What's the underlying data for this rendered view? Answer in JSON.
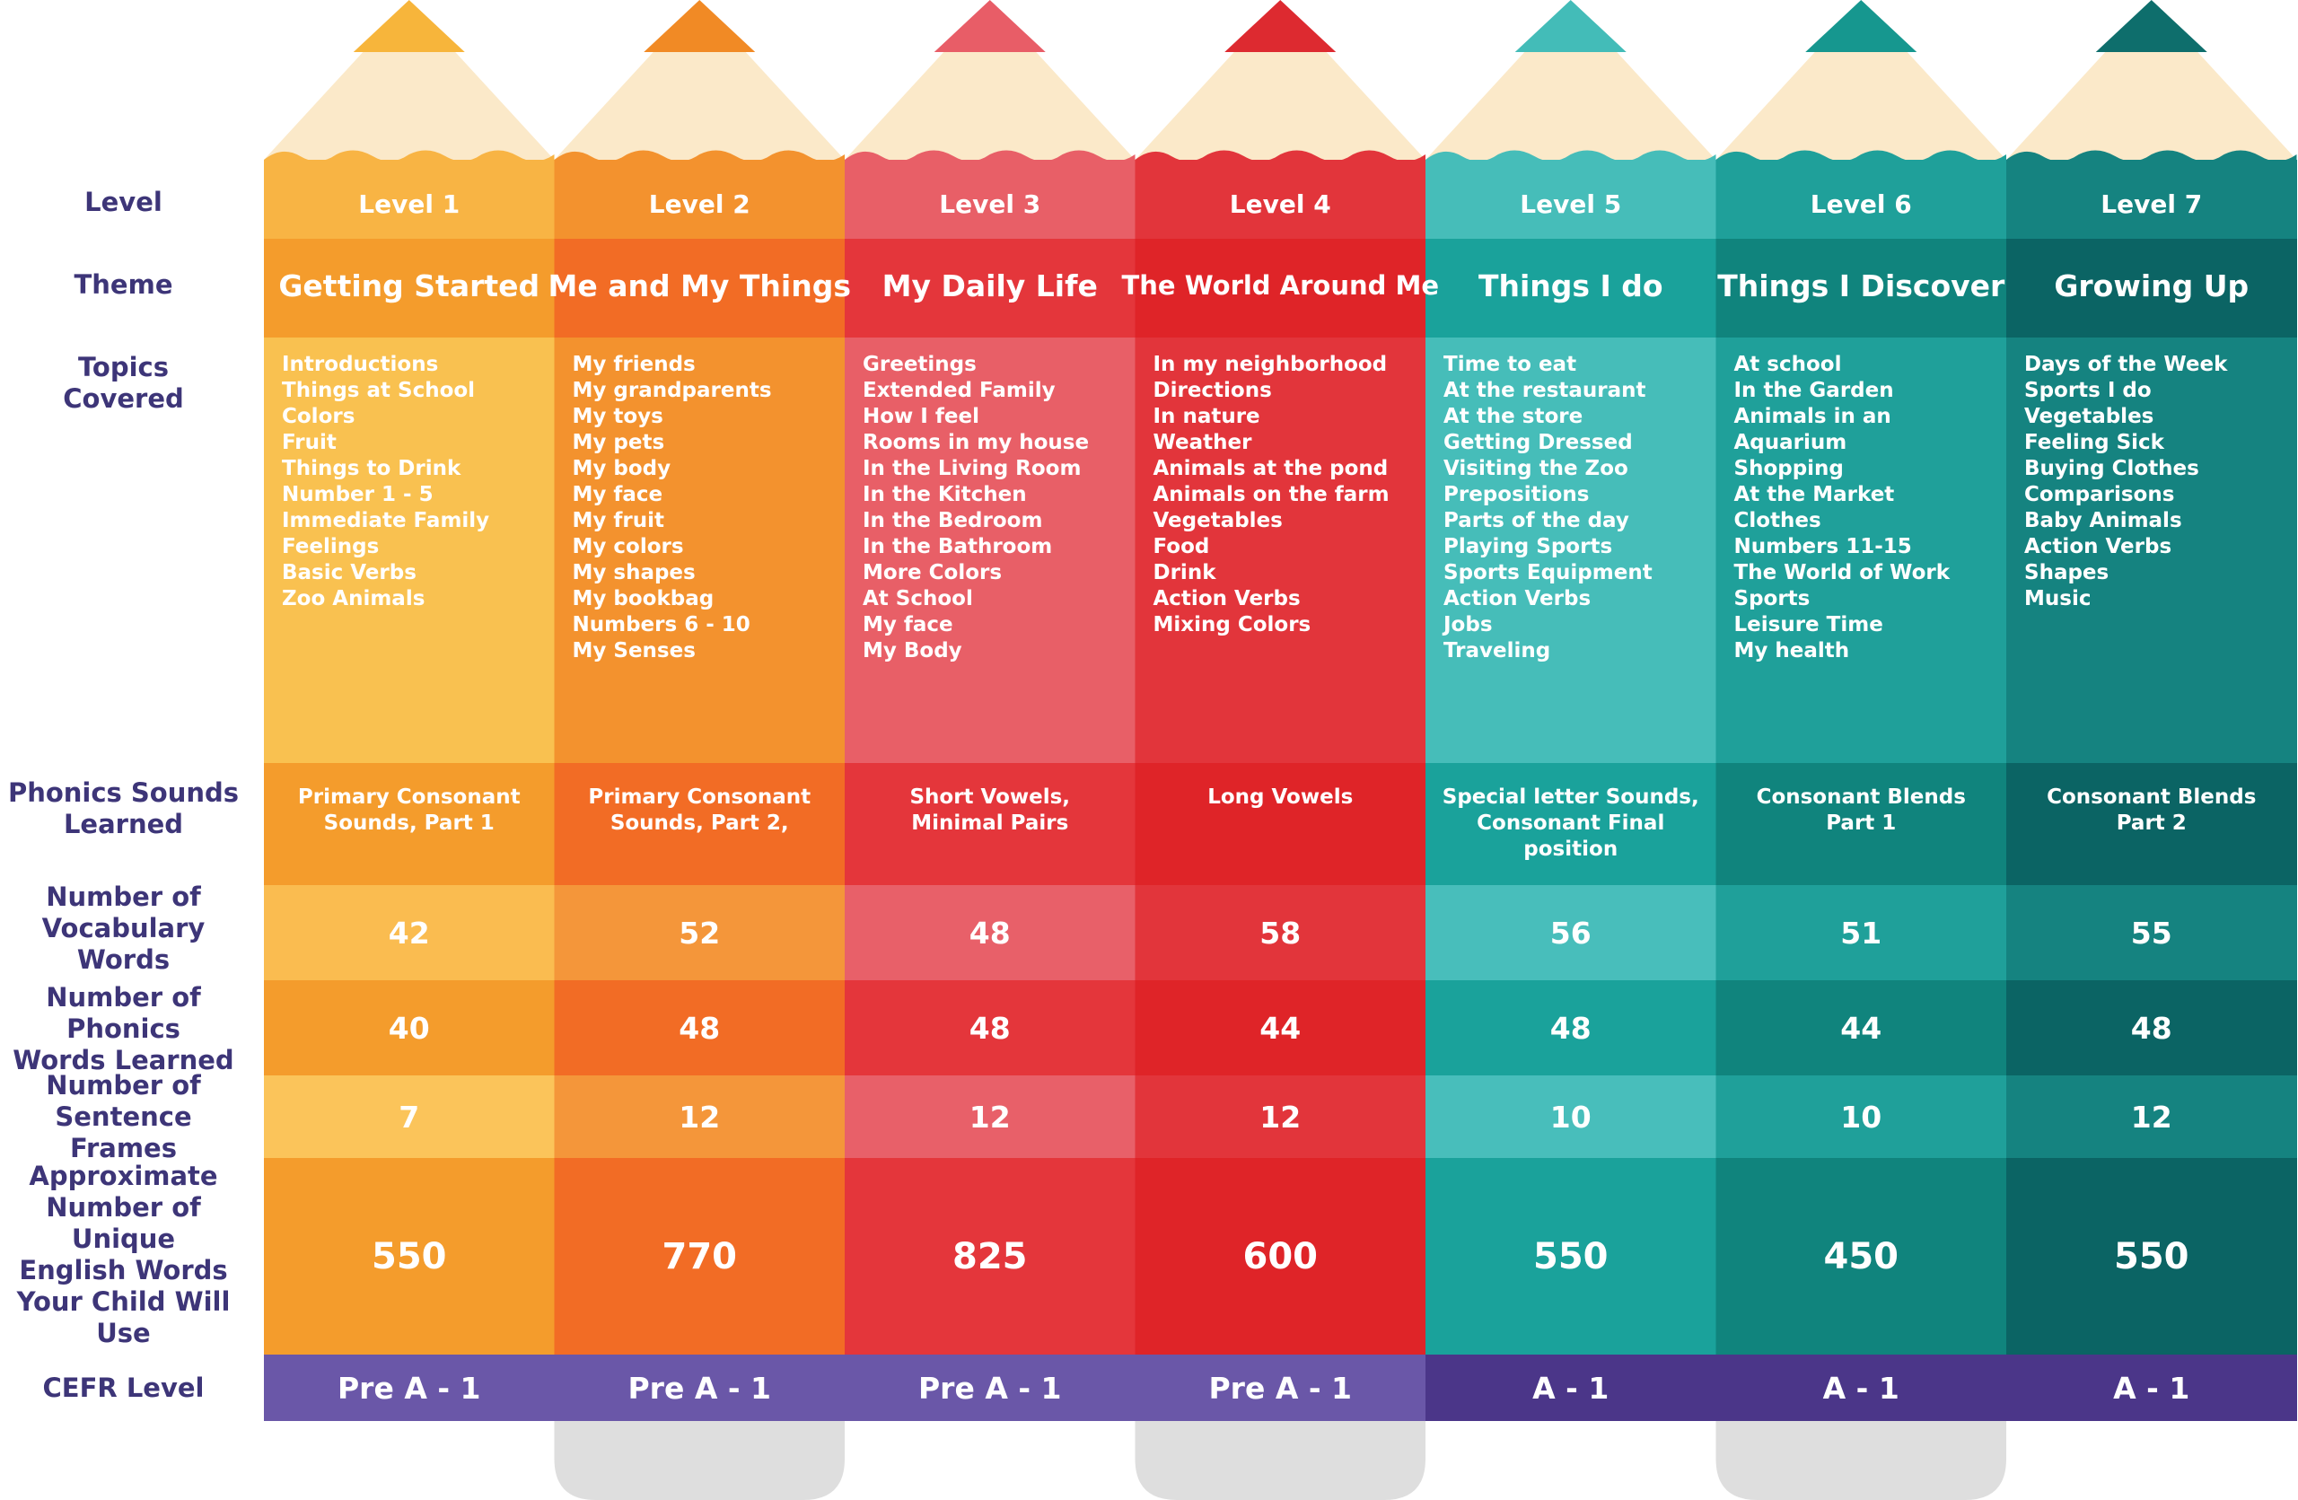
{
  "row_labels": {
    "level": "Level",
    "theme": "Theme",
    "topics": "Topics\nCovered",
    "phonics_sounds": "Phonics Sounds\nLearned",
    "vocab": "Number of\nVocabulary Words",
    "phonics_words": "Number of Phonics\nWords Learned",
    "sentence": "Number of Sentence\nFrames",
    "unique_words": "Approximate\nNumber of Unique\nEnglish Words\nYour Child Will Use",
    "cefr": "CEFR Level"
  },
  "levels": [
    {
      "level": "Level 1",
      "theme": "Getting Started",
      "topics": [
        "Introductions",
        "Things at School",
        "Colors",
        "Fruit",
        "Things to Drink",
        "Number 1 - 5",
        "Immediate Family",
        "Feelings",
        "Basic Verbs",
        "Zoo Animals"
      ],
      "phonics_sounds": "Primary Consonant\nSounds, Part 1",
      "vocab": "42",
      "phonics_words": "40",
      "sentence_frames": "7",
      "unique_words": "550",
      "cefr": "Pre A - 1",
      "colors": {
        "tip": "#f7b53b",
        "level": "#f8b444",
        "theme": "#f49c2c",
        "topics": "#f9c150",
        "phon": "#f49c2c",
        "vocab": "#fabc50",
        "phonw": "#f49c2c",
        "sent": "#fbc45a",
        "uniq": "#f49c2c"
      }
    },
    {
      "level": "Level 2",
      "theme": "Me and My Things",
      "topics": [
        "My friends",
        "My grandparents",
        "My toys",
        "My pets",
        "My body",
        "My face",
        "My fruit",
        "My colors",
        "My shapes",
        "My bookbag",
        "Numbers 6 - 10",
        "My Senses"
      ],
      "phonics_sounds": "Primary Consonant\nSounds, Part 2,",
      "vocab": "52",
      "phonics_words": "48",
      "sentence_frames": "12",
      "unique_words": "770",
      "cefr": "Pre A - 1",
      "colors": {
        "tip": "#f18a25",
        "level": "#f3922e",
        "theme": "#f26c25",
        "topics": "#f3922e",
        "phon": "#f26c25",
        "vocab": "#f4963a",
        "phonw": "#f26c25",
        "sent": "#f4963a",
        "uniq": "#f26c25"
      }
    },
    {
      "level": "Level 3",
      "theme": "My Daily Life",
      "topics": [
        "Greetings",
        "Extended Family",
        "How I feel",
        "Rooms in my house",
        "In the Living Room",
        "In the Kitchen",
        "In the Bedroom",
        "In the Bathroom",
        "More Colors",
        "At School",
        "My face",
        "My Body"
      ],
      "phonics_sounds": "Short Vowels,\nMinimal Pairs",
      "vocab": "48",
      "phonics_words": "48",
      "sentence_frames": "12",
      "unique_words": "825",
      "cefr": "Pre A - 1",
      "colors": {
        "tip": "#e85d67",
        "level": "#e85f67",
        "theme": "#e4363b",
        "topics": "#e85f67",
        "phon": "#e4363b",
        "vocab": "#e86069",
        "phonw": "#e4363b",
        "sent": "#e86069",
        "uniq": "#e4363b"
      }
    },
    {
      "level": "Level 4",
      "theme": "The World Around Me",
      "topics": [
        "In my neighborhood",
        "Directions",
        "In nature",
        "Weather",
        "Animals at the pond",
        "Animals on the farm",
        "Vegetables",
        "Food",
        "Drink",
        "Action Verbs",
        "Mixing Colors"
      ],
      "phonics_sounds": "Long Vowels",
      "vocab": "58",
      "phonics_words": "44",
      "sentence_frames": "12",
      "unique_words": "600",
      "cefr": "Pre A - 1",
      "colors": {
        "tip": "#dd2a30",
        "level": "#e2353b",
        "theme": "#df2428",
        "topics": "#e2353b",
        "phon": "#df2428",
        "vocab": "#e2353b",
        "phonw": "#df2428",
        "sent": "#e2353b",
        "uniq": "#df2428"
      }
    },
    {
      "level": "Level 5",
      "theme": "Things I do",
      "topics": [
        "Time to eat",
        "At the restaurant",
        "At the store",
        "Getting Dressed",
        "Visiting the Zoo",
        "Prepositions",
        "Parts of the day",
        "Playing Sports",
        "Sports Equipment",
        "Action Verbs",
        "Jobs",
        "Traveling"
      ],
      "phonics_sounds": "Special letter Sounds,\nConsonant Final position",
      "vocab": "56",
      "phonics_words": "48",
      "sentence_frames": "10",
      "unique_words": "550",
      "cefr": "A - 1",
      "colors": {
        "tip": "#43bcb8",
        "level": "#46bdb9",
        "theme": "#1aa29b",
        "topics": "#46bdb9",
        "phon": "#1aa29b",
        "vocab": "#48bebb",
        "phonw": "#1aa29b",
        "sent": "#48bebb",
        "uniq": "#1aa29b"
      }
    },
    {
      "level": "Level 6",
      "theme": "Things I Discover",
      "topics": [
        "At school",
        "In the Garden",
        "Animals in an Aquarium",
        "Shopping",
        "At the Market",
        "Clothes",
        "Numbers 11-15",
        "The World of Work",
        "Sports",
        "Leisure Time",
        "My health"
      ],
      "phonics_sounds": "Consonant Blends\nPart 1",
      "vocab": "51",
      "phonics_words": "44",
      "sentence_frames": "10",
      "unique_words": "450",
      "cefr": "A - 1",
      "colors": {
        "tip": "#16978f",
        "level": "#1fa09a",
        "theme": "#10847d",
        "topics": "#1fa09a",
        "phon": "#10847d",
        "vocab": "#1fa09a",
        "phonw": "#10847d",
        "sent": "#1fa09a",
        "uniq": "#10847d"
      }
    },
    {
      "level": "Level 7",
      "theme": "Growing Up",
      "topics": [
        "Days of the Week",
        "Sports I do",
        "Vegetables",
        "Feeling Sick",
        "Buying Clothes",
        "Comparisons",
        "Baby Animals",
        "Action Verbs",
        "Shapes",
        "Music"
      ],
      "phonics_sounds": "Consonant Blends\nPart 2",
      "vocab": "55",
      "phonics_words": "48",
      "sentence_frames": "12",
      "unique_words": "550",
      "cefr": "A - 1",
      "colors": {
        "tip": "#0e6e6c",
        "level": "#158380",
        "theme": "#0b6464",
        "topics": "#158380",
        "phon": "#0b6464",
        "vocab": "#158380",
        "phonw": "#0b6464",
        "sent": "#158380",
        "uniq": "#0b6464"
      }
    }
  ],
  "colors": {
    "label_text": "#3d3578",
    "wood": "#fbe9c9",
    "cefr_pre": "#6a57a8",
    "cefr_a": "#4b3689",
    "eraser": "#dedede"
  }
}
